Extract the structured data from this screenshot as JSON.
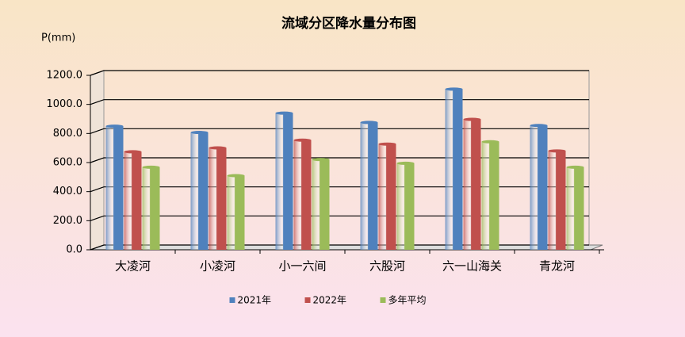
{
  "chart_data": {
    "type": "bar",
    "title": "流域分区降水量分布图",
    "y_label": "P(mm)",
    "categories": [
      "大凌河",
      "小凌河",
      "小一六间",
      "六股河",
      "六一山海关",
      "青龙河"
    ],
    "series": [
      {
        "name": "2021年",
        "color": "#4f81bd",
        "values": [
          850,
          807,
          940,
          876,
          1105,
          855
        ]
      },
      {
        "name": "2022年",
        "color": "#c0504d",
        "values": [
          674,
          701,
          754,
          727,
          897,
          680
        ]
      },
      {
        "name": "多年平均",
        "color": "#9bbb59",
        "values": [
          568,
          510,
          621,
          595,
          743,
          568
        ]
      }
    ],
    "ylim": [
      0,
      1200
    ],
    "yticks": [
      {
        "value": 0,
        "label": "0.0"
      },
      {
        "value": 200,
        "label": "200.0"
      },
      {
        "value": 400,
        "label": "400.0"
      },
      {
        "value": 600,
        "label": "600.0"
      },
      {
        "value": 800,
        "label": "800.0"
      },
      {
        "value": 1000,
        "label": "1000.0"
      },
      {
        "value": 1200,
        "label": "1200.0"
      }
    ],
    "grid": true,
    "legend": "bottom"
  }
}
